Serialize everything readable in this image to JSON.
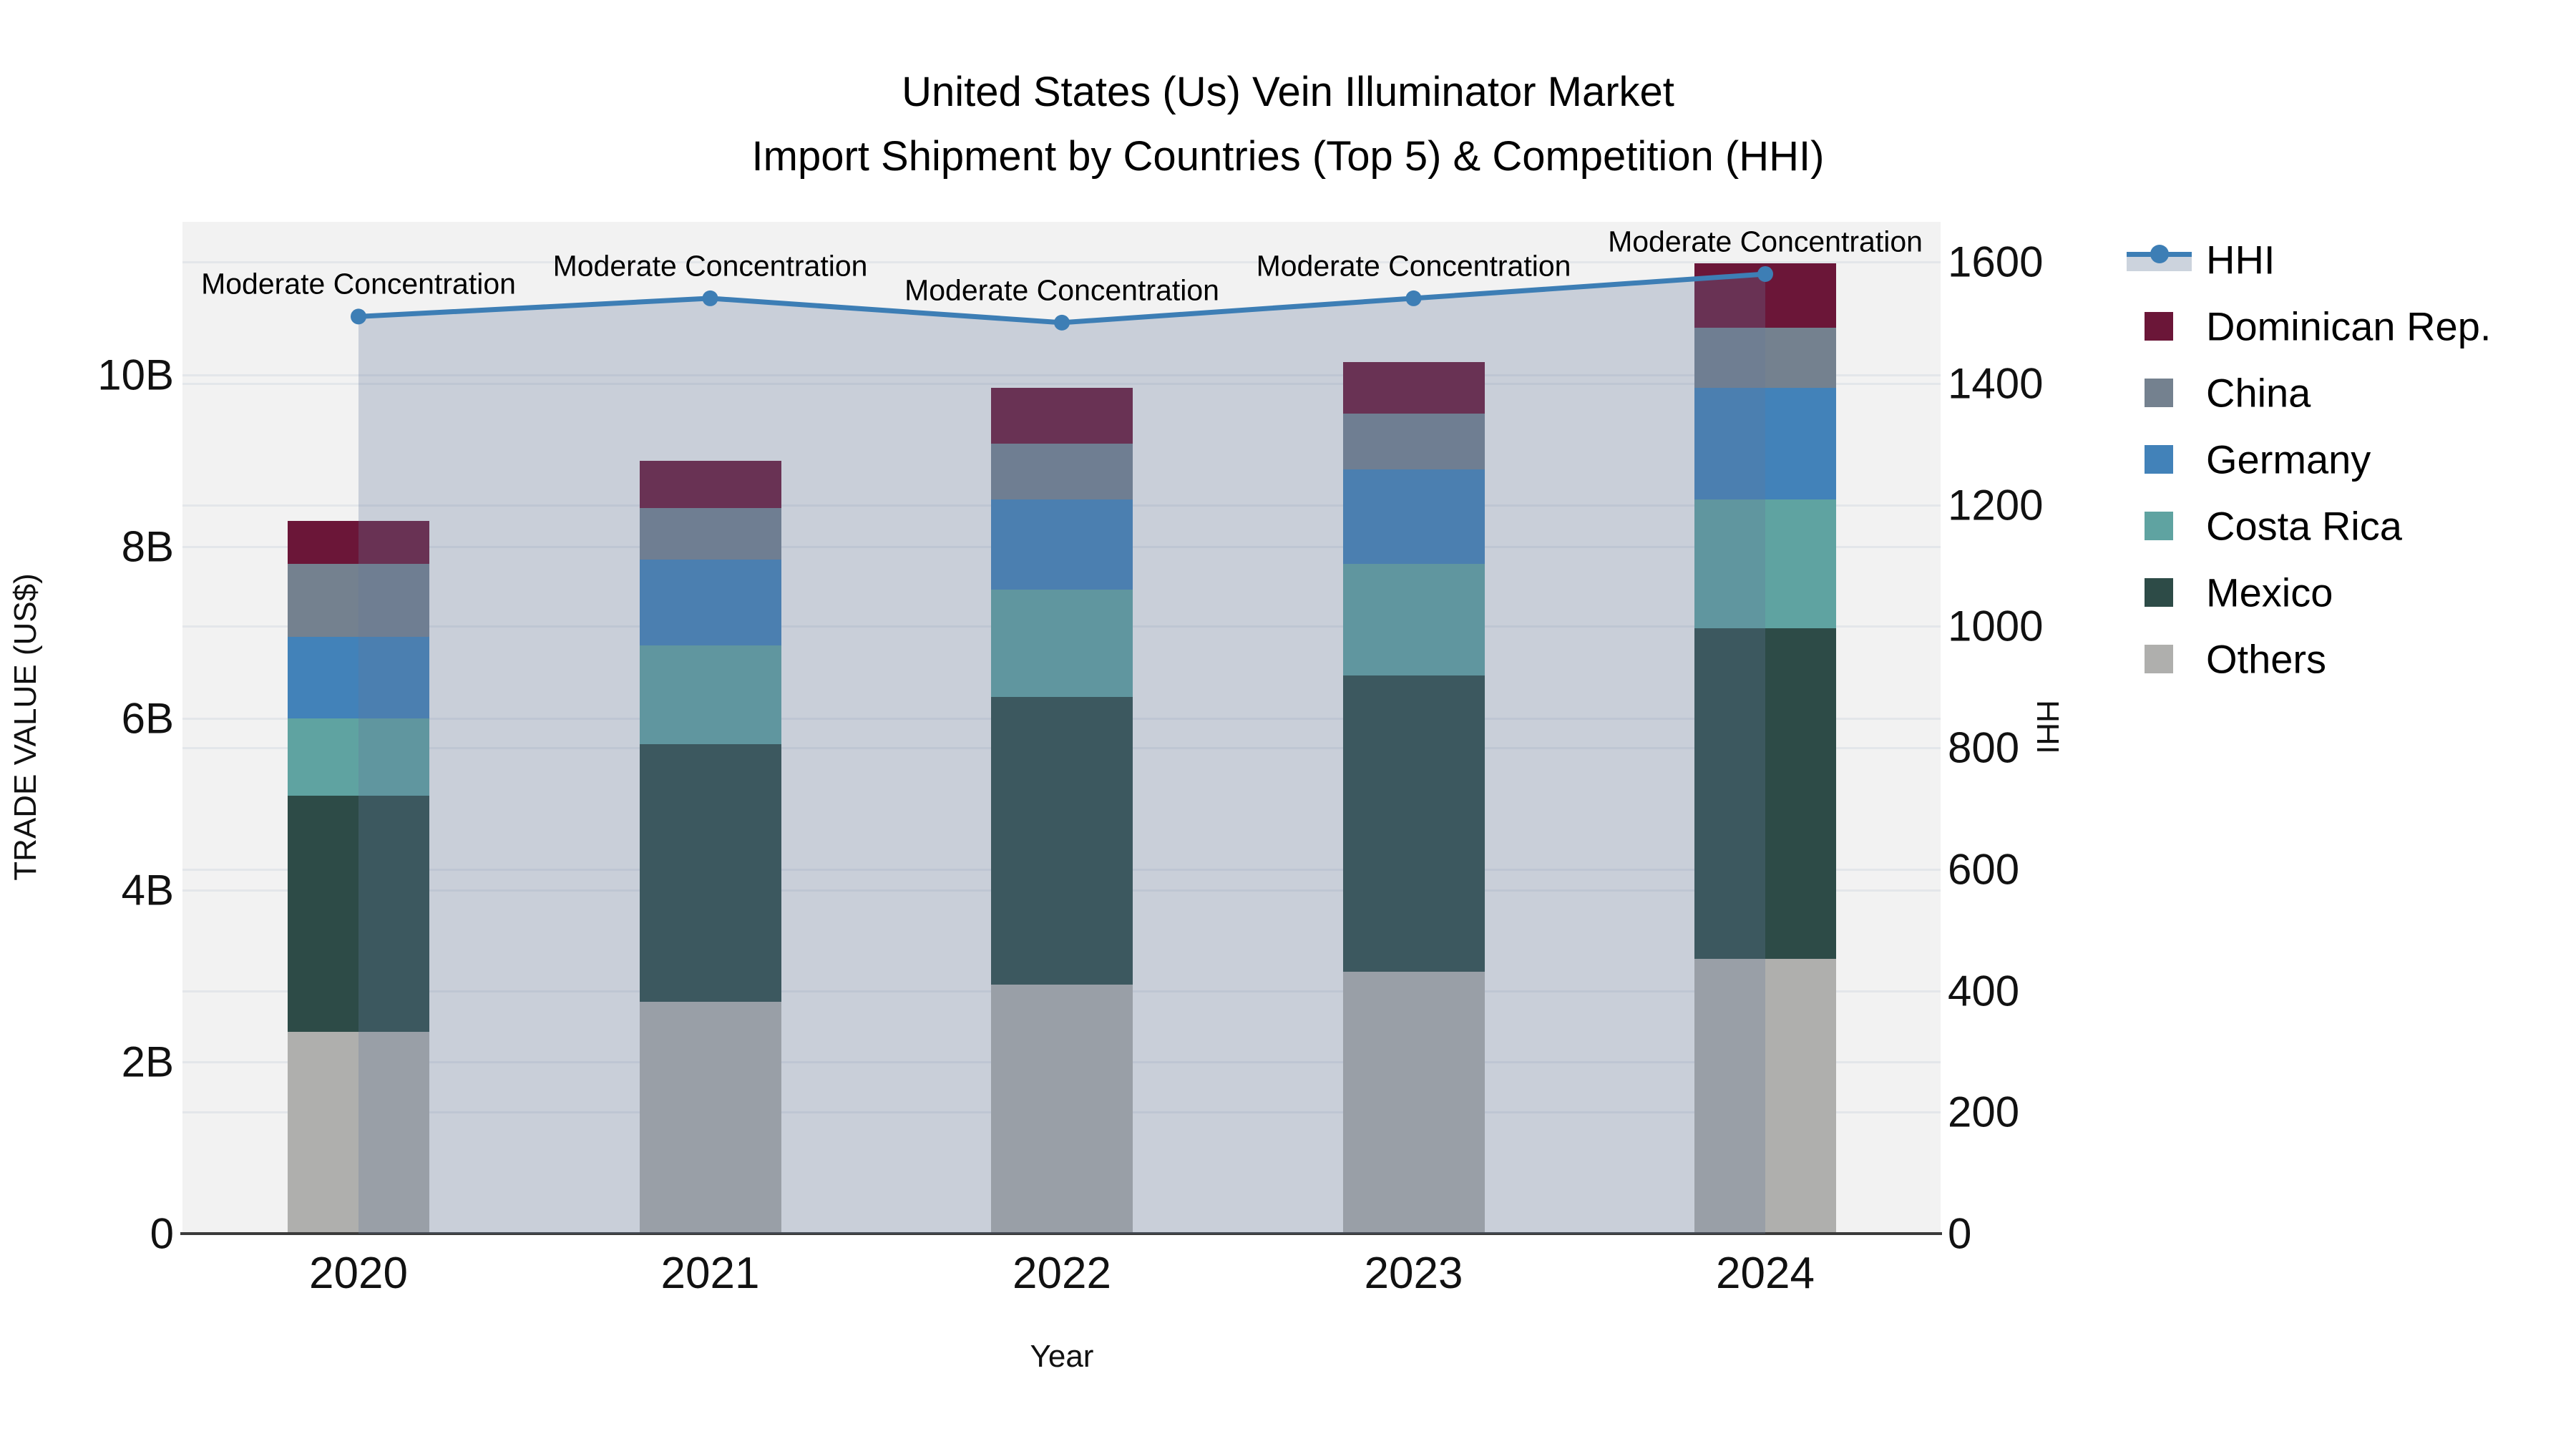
{
  "title": {
    "line1": "United States (Us) Vein Illuminator Market",
    "line2": "Import Shipment by Countries (Top 5) & Competition (HHI)"
  },
  "axes": {
    "x": {
      "label": "Year",
      "tick_labels": [
        "2020",
        "2021",
        "2022",
        "2023",
        "2024"
      ]
    },
    "y_left": {
      "label": "TRADE VALUE (US$)",
      "tick_labels": [
        "0",
        "2B",
        "4B",
        "6B",
        "8B",
        "10B"
      ],
      "tick_values": [
        0,
        2,
        4,
        6,
        8,
        10
      ]
    },
    "y_right": {
      "label": "HHI",
      "tick_labels": [
        "0",
        "200",
        "400",
        "600",
        "800",
        "1000",
        "1200",
        "1400",
        "1600"
      ],
      "tick_values": [
        0,
        200,
        400,
        600,
        800,
        1000,
        1200,
        1400,
        1600
      ]
    }
  },
  "legend": {
    "items": [
      {
        "label": "HHI",
        "type": "line",
        "color": "#3d7eb5"
      },
      {
        "label": "Dominican Rep.",
        "type": "patch",
        "color": "#6b1638"
      },
      {
        "label": "China",
        "type": "patch",
        "color": "#74818f"
      },
      {
        "label": "Germany",
        "type": "patch",
        "color": "#4282b9"
      },
      {
        "label": "Costa Rica",
        "type": "patch",
        "color": "#5fa3a1"
      },
      {
        "label": "Mexico",
        "type": "patch",
        "color": "#2d4b47"
      },
      {
        "label": "Others",
        "type": "patch",
        "color": "#afafad"
      }
    ]
  },
  "colors": {
    "plot_background": "#f2f2f2",
    "grid": "#e3e6ea",
    "axis_line": "#3b3b3b",
    "hhi_line": "#3d7eb5",
    "hhi_fill": "rgba(100,120,155,0.29)",
    "text": "#111111"
  },
  "chart_data": {
    "type": "bar",
    "subtype": "stacked bars (left axis, billion US$) + HHI line with shaded area (right axis)",
    "title": "United States (Us) Vein Illuminator Market — Import Shipment by Countries (Top 5) & Competition (HHI)",
    "xlabel": "Year",
    "ylabel_left": "TRADE VALUE (US$)",
    "ylabel_right": "HHI",
    "categories": [
      "2020",
      "2021",
      "2022",
      "2023",
      "2024"
    ],
    "bar_unit": "billion US$",
    "series": [
      {
        "name": "Others",
        "color": "#afafad",
        "values": [
          2.35,
          2.7,
          2.9,
          3.05,
          3.2
        ]
      },
      {
        "name": "Mexico",
        "color": "#2d4b47",
        "values": [
          2.75,
          3.0,
          3.35,
          3.45,
          3.85
        ]
      },
      {
        "name": "Costa Rica",
        "color": "#5fa3a1",
        "values": [
          0.9,
          1.15,
          1.25,
          1.3,
          1.5
        ]
      },
      {
        "name": "Germany",
        "color": "#4282b9",
        "values": [
          0.95,
          1.0,
          1.05,
          1.1,
          1.3
        ]
      },
      {
        "name": "China",
        "color": "#74818f",
        "values": [
          0.85,
          0.6,
          0.65,
          0.65,
          0.7
        ]
      },
      {
        "name": "Dominican Rep.",
        "color": "#6b1638",
        "values": [
          0.5,
          0.55,
          0.65,
          0.6,
          0.75
        ]
      }
    ],
    "bar_totals": [
      8.3,
      9.0,
      9.9,
      10.15,
      11.3
    ],
    "line_series": {
      "name": "HHI",
      "axis": "right",
      "color": "#3d7eb5",
      "values": [
        1510,
        1540,
        1500,
        1540,
        1580
      ],
      "point_annotations": [
        "Moderate Concentration",
        "Moderate Concentration",
        "Moderate Concentration",
        "Moderate Concentration",
        "Moderate Concentration"
      ]
    },
    "y_left_range": [
      0,
      11.78
    ],
    "y_right_range": [
      0,
      1666
    ],
    "grid": true,
    "legend_position": "right-top"
  }
}
